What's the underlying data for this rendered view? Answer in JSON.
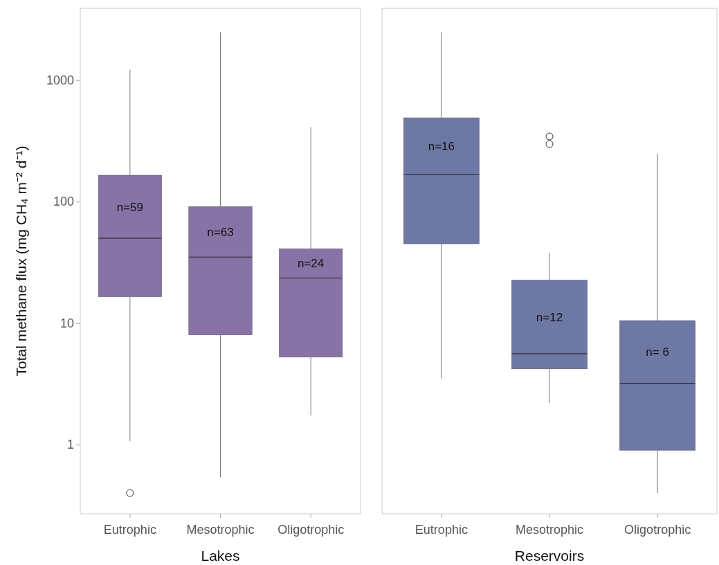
{
  "chart_data": [
    {
      "type": "box",
      "xlabel": "Lakes",
      "ylabel": "Total methane flux (mg CH₄ m⁻² d⁻¹)",
      "categories": [
        "Eutrophic",
        "Mesotrophic",
        "Oligotrophic"
      ],
      "color": "#8773a5",
      "log": true,
      "ylim": [
        0.27,
        3900
      ],
      "yticks": [
        1,
        10,
        100,
        1000
      ],
      "boxes": [
        {
          "low": 1.07,
          "q1": 16.5,
          "median": 50,
          "q3": 165,
          "high": 1220,
          "outliers": [
            0.4
          ]
        },
        {
          "low": 0.54,
          "q1": 8,
          "median": 35,
          "q3": 91,
          "high": 2480
        },
        {
          "low": 1.74,
          "q1": 5.25,
          "median": 23.5,
          "q3": 41,
          "high": 410
        }
      ],
      "annotations": [
        "n=59",
        "n=63",
        "n=24"
      ]
    },
    {
      "type": "box",
      "xlabel": "Reservoirs",
      "categories": [
        "Eutrophic",
        "Mesotrophic",
        "Oligotrophic"
      ],
      "color": "#6e78a5",
      "log": true,
      "ylim": [
        0.27,
        3900
      ],
      "tick_labels": "x",
      "boxes": [
        {
          "low": 3.5,
          "q1": 45,
          "median": 167,
          "q3": 490,
          "high": 2480
        },
        {
          "low": 2.2,
          "q1": 4.2,
          "median": 5.6,
          "q3": 22.6,
          "high": 38,
          "outliers": [
            298,
            344
          ]
        },
        {
          "low": 0.4,
          "q1": 0.9,
          "median": 3.2,
          "q3": 10.5,
          "high": 248
        }
      ],
      "annotations": [
        "n=16",
        "n=12",
        "n= 6"
      ]
    }
  ]
}
